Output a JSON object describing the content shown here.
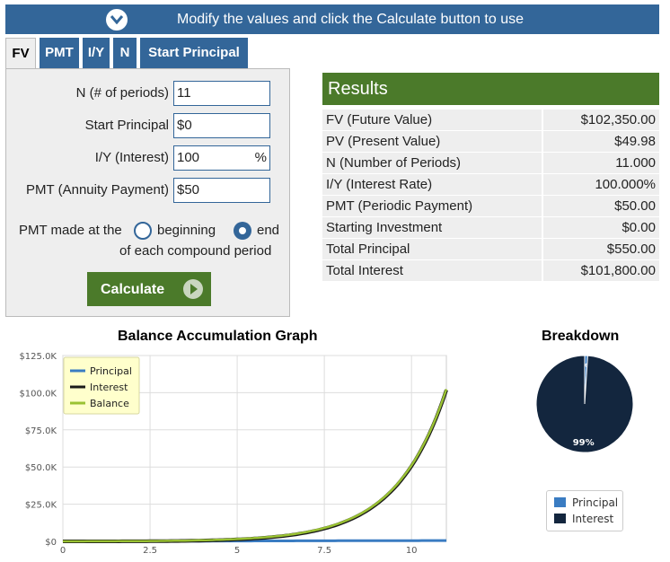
{
  "banner": {
    "text": "Modify the values and click the Calculate button to use"
  },
  "tabs": [
    {
      "label": "FV"
    },
    {
      "label": "PMT"
    },
    {
      "label": "I/Y"
    },
    {
      "label": "N"
    },
    {
      "label": "Start Principal"
    }
  ],
  "form": {
    "n_label": "N (# of periods)",
    "n_value": "11",
    "sp_label": "Start Principal",
    "sp_value": "$0",
    "iy_label": "I/Y (Interest)",
    "iy_value": "100",
    "iy_suffix": "%",
    "pmt_label": "PMT (Annuity Payment)",
    "pmt_value": "$50",
    "timing_prefix": "PMT made at the",
    "timing_beginning": "beginning",
    "timing_end": "end",
    "timing_suffix": "of each compound period",
    "calculate_label": "Calculate"
  },
  "results": {
    "title": "Results",
    "rows": [
      {
        "label": "FV (Future Value)",
        "value": "$102,350.00"
      },
      {
        "label": "PV (Present Value)",
        "value": "$49.98"
      },
      {
        "label": "N (Number of Periods)",
        "value": "11.000"
      },
      {
        "label": "I/Y (Interest Rate)",
        "value": "100.000%"
      },
      {
        "label": "PMT (Periodic Payment)",
        "value": "$50.00"
      },
      {
        "label": "Starting Investment",
        "value": "$0.00"
      },
      {
        "label": "Total Principal",
        "value": "$550.00"
      },
      {
        "label": "Total Interest",
        "value": "$101,800.00"
      }
    ]
  },
  "chart_data": [
    {
      "type": "line",
      "title": "Balance Accumulation Graph",
      "xlim": [
        0,
        11
      ],
      "ylim": [
        0,
        125000
      ],
      "x_ticks": [
        "0",
        "2.5",
        "5",
        "7.5",
        "10"
      ],
      "x_tick_values": [
        0,
        2.5,
        5,
        7.5,
        10
      ],
      "y_ticks": [
        "$0",
        "$25.0K",
        "$50.0K",
        "$75.0K",
        "$100.0K",
        "$125.0K"
      ],
      "y_tick_values": [
        0,
        25000,
        50000,
        75000,
        100000,
        125000
      ],
      "legend_position": "top-left",
      "grid": true,
      "x": [
        0,
        1,
        2,
        3,
        4,
        5,
        6,
        7,
        8,
        9,
        10,
        11
      ],
      "series": [
        {
          "name": "Principal",
          "color": "#3a7cc2",
          "values": [
            0,
            50,
            100,
            150,
            200,
            250,
            300,
            350,
            400,
            450,
            500,
            550
          ]
        },
        {
          "name": "Interest",
          "color": "#1a1a1a",
          "values": [
            0,
            0,
            50,
            200,
            550,
            1300,
            2850,
            6000,
            12350,
            25100,
            50650,
            101800
          ]
        },
        {
          "name": "Balance",
          "color": "#9ac233",
          "values": [
            0,
            50,
            150,
            350,
            750,
            1550,
            3150,
            6350,
            12750,
            25550,
            51150,
            102350
          ]
        }
      ]
    },
    {
      "type": "pie",
      "title": "Breakdown",
      "slices": [
        {
          "name": "Principal",
          "value": 1,
          "label": "1%",
          "color": "#3a7cc2"
        },
        {
          "name": "Interest",
          "value": 99,
          "label": "99%",
          "color": "#13263e"
        }
      ],
      "legend_position": "bottom"
    }
  ]
}
